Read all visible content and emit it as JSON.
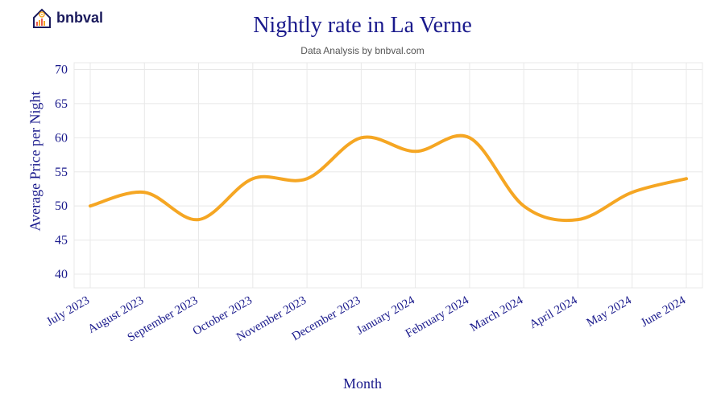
{
  "logo": {
    "text": "bnbval"
  },
  "chart": {
    "type": "line",
    "title": "Nightly rate in La Verne",
    "subtitle": "Data Analysis by bnbval.com",
    "xlabel": "Month",
    "ylabel": "Average Price per Night",
    "title_fontsize": 28,
    "subtitle_fontsize": 12,
    "label_fontsize": 18,
    "tick_fontsize": 16,
    "text_color": "#1a1a8c",
    "subtitle_color": "#555555",
    "line_color": "#f5a623",
    "line_width": 4,
    "background_color": "#ffffff",
    "grid_color": "#e8e8e8",
    "ylim": [
      38,
      71
    ],
    "yticks": [
      40,
      45,
      50,
      55,
      60,
      65,
      70
    ],
    "x_categories": [
      "July 2023",
      "August 2023",
      "September 2023",
      "October 2023",
      "November 2023",
      "December 2023",
      "January 2024",
      "February 2024",
      "March 2024",
      "April 2024",
      "May 2024",
      "June 2024"
    ],
    "values": [
      50,
      52,
      48,
      54,
      54,
      60,
      58,
      60,
      50,
      48,
      52,
      54
    ],
    "x_tick_rotation": -30
  }
}
